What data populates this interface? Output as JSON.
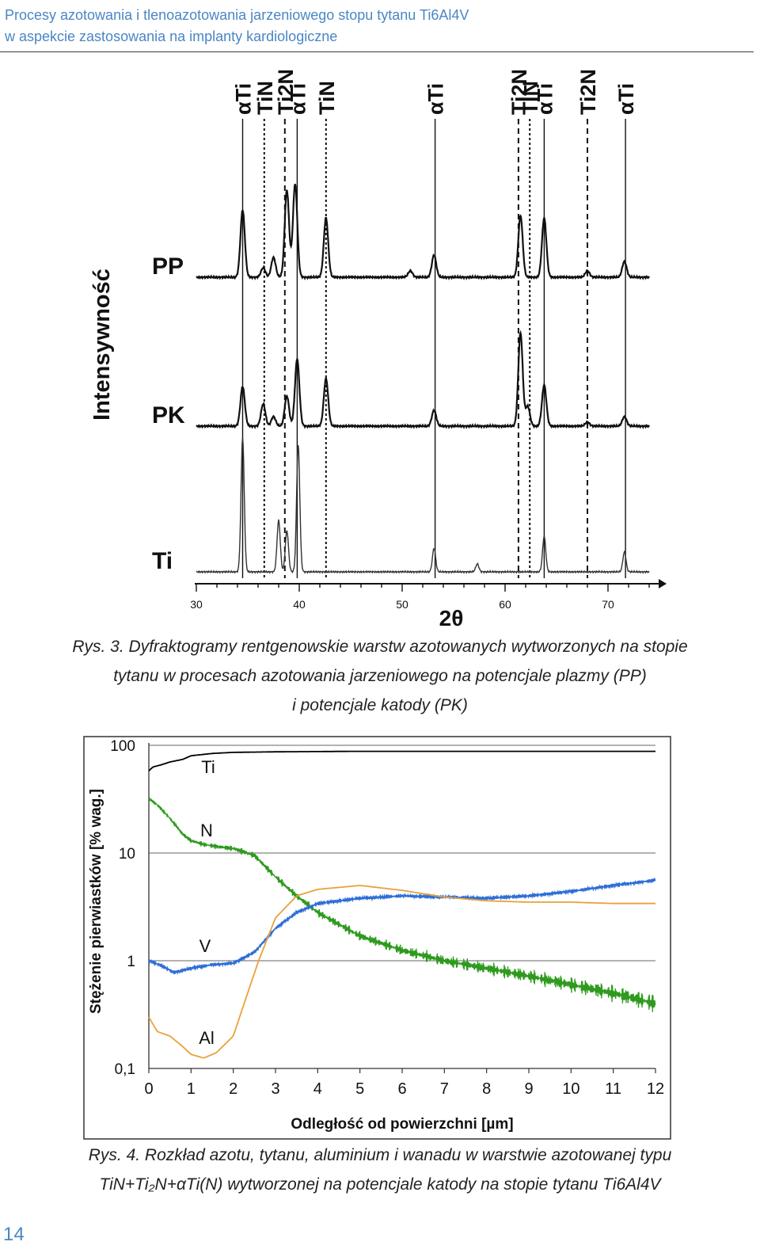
{
  "header": {
    "line1": "Procesy azotowania i tlenoazotowania jarzeniowego stopu tytanu Ti6Al4V",
    "line2": "w aspekcie zastosowania na implanty kardiologiczne"
  },
  "figure3": {
    "caption_line1": "Rys. 3. Dyfraktogramy rentgenowskie warstw azotowanych wytworzonych na stopie",
    "caption_line2": "tytanu w procesach azotowania jarzeniowego na potencjale plazmy (PP)",
    "caption_line3": "i potencjale katody (PK)",
    "chart_data": {
      "type": "line",
      "ylabel": "Intensywność",
      "xlabel": "2θ",
      "xticks": [
        "30",
        "40",
        "50",
        "60",
        "70"
      ],
      "xlim": [
        30,
        75
      ],
      "series": [
        {
          "name": "PP",
          "baseline": 350,
          "peaks": [
            [
              34.5,
              85
            ],
            [
              36.5,
              12
            ],
            [
              37.5,
              25
            ],
            [
              38.8,
              110
            ],
            [
              39.6,
              118
            ],
            [
              42.6,
              75
            ],
            [
              50.8,
              8
            ],
            [
              53.1,
              28
            ],
            [
              61.5,
              78
            ],
            [
              63.8,
              75
            ],
            [
              68.0,
              8
            ],
            [
              71.6,
              20
            ]
          ]
        },
        {
          "name": "PK",
          "baseline": 538,
          "peaks": [
            [
              34.5,
              50
            ],
            [
              36.5,
              28
            ],
            [
              37.5,
              12
            ],
            [
              38.8,
              38
            ],
            [
              39.8,
              85
            ],
            [
              42.6,
              60
            ],
            [
              53.1,
              20
            ],
            [
              61.5,
              118
            ],
            [
              62.2,
              25
            ],
            [
              63.8,
              52
            ],
            [
              68.0,
              5
            ],
            [
              71.6,
              12
            ]
          ]
        },
        {
          "name": "Ti",
          "baseline": 722,
          "peaks": [
            [
              34.5,
              170
            ],
            [
              38.0,
              65
            ],
            [
              38.8,
              52
            ],
            [
              39.9,
              160
            ],
            [
              53.1,
              30
            ],
            [
              57.3,
              10
            ],
            [
              63.8,
              45
            ],
            [
              71.6,
              25
            ]
          ]
        }
      ],
      "reference_lines": [
        {
          "phase": "αTi",
          "x": 34.5,
          "style": "solid"
        },
        {
          "phase": "TiN",
          "x": 36.6,
          "style": "dotted"
        },
        {
          "phase": "Ti2N",
          "x": 38.6,
          "style": "dashed"
        },
        {
          "phase": "αTi",
          "x": 39.8,
          "style": "solid"
        },
        {
          "phase": "TiN",
          "x": 42.6,
          "style": "dotted"
        },
        {
          "phase": "αTi",
          "x": 53.2,
          "style": "solid"
        },
        {
          "phase": "Ti2N",
          "x": 61.3,
          "style": "dashed"
        },
        {
          "phase": "TiN",
          "x": 62.4,
          "style": "dotted"
        },
        {
          "phase": "αTi",
          "x": 63.8,
          "style": "solid"
        },
        {
          "phase": "Ti2N",
          "x": 68.0,
          "style": "dashed"
        },
        {
          "phase": "αTi",
          "x": 71.7,
          "style": "solid"
        }
      ]
    }
  },
  "figure4": {
    "caption_line1": "Rys. 4. Rozkład azotu, tytanu, aluminium i wanadu w warstwie azotowanej typu",
    "caption_line2": "TiN+Ti₂N+αTi(N) wytworzonej na potencjale katody na stopie tytanu Ti6Al4V",
    "chart_data": {
      "type": "line",
      "xlabel": "Odległość od powierzchni [µm]",
      "ylabel": "Stężenie pierwiastków [% wag.]",
      "yscale": "log",
      "ylim": [
        0.1,
        100
      ],
      "xlim": [
        0,
        12
      ],
      "yticks": [
        "100",
        "10",
        "1",
        "0,1"
      ],
      "xticks": [
        "0",
        "1",
        "2",
        "3",
        "4",
        "5",
        "6",
        "7",
        "8",
        "9",
        "10",
        "11",
        "12"
      ],
      "grid": true,
      "series": [
        {
          "name": "Ti",
          "color": "#000000",
          "x": [
            0,
            0.1,
            0.3,
            0.5,
            0.8,
            1.0,
            1.5,
            2,
            3,
            5,
            8,
            10,
            12
          ],
          "y": [
            58,
            63,
            66,
            70,
            74,
            80,
            84,
            86,
            87,
            88,
            88,
            88,
            88
          ]
        },
        {
          "name": "N",
          "color": "#2e9a1e",
          "x": [
            0,
            0.2,
            0.5,
            0.8,
            1.0,
            1.3,
            1.6,
            2.0,
            2.5,
            3.0,
            3.5,
            4.0,
            5.0,
            6.0,
            7.0,
            8.0,
            9.0,
            10.0,
            11.0,
            12.0
          ],
          "y": [
            32,
            28,
            21,
            15,
            13,
            12,
            11.5,
            11,
            9.5,
            6,
            4,
            2.8,
            1.7,
            1.25,
            1.0,
            0.85,
            0.72,
            0.6,
            0.5,
            0.4
          ]
        },
        {
          "name": "V",
          "color": "#2f6fd6",
          "x": [
            0,
            0.3,
            0.6,
            1.0,
            1.5,
            2.0,
            2.5,
            3.0,
            3.5,
            4.0,
            5.0,
            6.0,
            7.0,
            8.0,
            9.0,
            10.0,
            11.0,
            12.0
          ],
          "y": [
            1.0,
            0.9,
            0.78,
            0.85,
            0.92,
            0.95,
            1.2,
            2.0,
            2.8,
            3.4,
            3.8,
            4.0,
            3.9,
            3.8,
            4.0,
            4.4,
            5.0,
            5.6
          ]
        },
        {
          "name": "Al",
          "color": "#e8a23a",
          "x": [
            0,
            0.2,
            0.5,
            0.8,
            1.0,
            1.3,
            1.6,
            2.0,
            2.3,
            2.6,
            3.0,
            3.5,
            4.0,
            5.0,
            6.0,
            7.0,
            8.0,
            9.0,
            10.0,
            11.0,
            12.0
          ],
          "y": [
            0.3,
            0.22,
            0.2,
            0.16,
            0.135,
            0.125,
            0.14,
            0.2,
            0.45,
            1.0,
            2.5,
            4.0,
            4.6,
            5.0,
            4.5,
            3.9,
            3.6,
            3.5,
            3.5,
            3.4,
            3.4
          ]
        }
      ]
    }
  },
  "page_number": "14"
}
